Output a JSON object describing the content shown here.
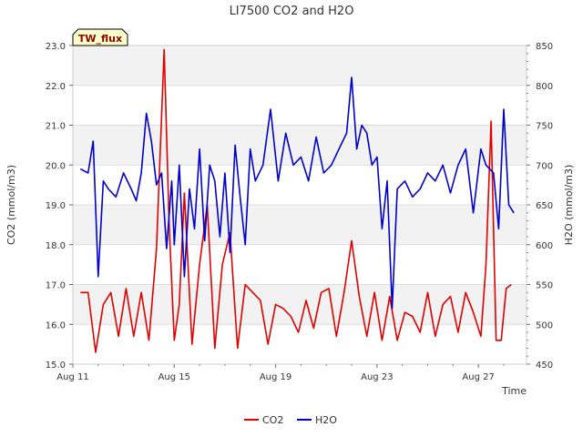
{
  "chart_data": {
    "type": "line",
    "title": "LI7500 CO2 and H2O",
    "site_badge": "TW_flux",
    "xlabel": "Time",
    "ylabel_left": "CO2 (mmol/m3)",
    "ylabel_right": "H2O (mmol/m3)",
    "x_range_days": [
      11,
      28.9
    ],
    "x_ticks": [
      {
        "day": 11,
        "label": "Aug 11"
      },
      {
        "day": 15,
        "label": "Aug 15"
      },
      {
        "day": 19,
        "label": "Aug 19"
      },
      {
        "day": 23,
        "label": "Aug 23"
      },
      {
        "day": 27,
        "label": "Aug 27"
      }
    ],
    "ylim_left": [
      15.0,
      23.0
    ],
    "yticks_left": [
      "15.0",
      "16.0",
      "17.0",
      "18.0",
      "19.0",
      "20.0",
      "21.0",
      "22.0",
      "23.0"
    ],
    "ylim_right": [
      450,
      850
    ],
    "yticks_right": [
      "450",
      "500",
      "550",
      "600",
      "650",
      "700",
      "750",
      "800",
      "850"
    ],
    "grid": true,
    "legend_position": "bottom-center",
    "series": [
      {
        "name": "CO2",
        "axis": "left",
        "color": "#e00000",
        "x": [
          11.3,
          11.6,
          11.9,
          12.2,
          12.5,
          12.8,
          13.1,
          13.4,
          13.7,
          14.0,
          14.3,
          14.6,
          14.8,
          15.0,
          15.2,
          15.4,
          15.7,
          16.0,
          16.3,
          16.6,
          16.9,
          17.2,
          17.5,
          17.8,
          18.1,
          18.4,
          18.7,
          19.0,
          19.3,
          19.6,
          19.9,
          20.2,
          20.5,
          20.8,
          21.1,
          21.4,
          21.7,
          22.0,
          22.3,
          22.6,
          22.9,
          23.2,
          23.5,
          23.8,
          24.1,
          24.4,
          24.7,
          25.0,
          25.3,
          25.6,
          25.9,
          26.2,
          26.5,
          26.8,
          27.1,
          27.3,
          27.5,
          27.7,
          27.9,
          28.1,
          28.3
        ],
        "y": [
          16.8,
          16.8,
          15.3,
          16.5,
          16.8,
          15.7,
          16.9,
          15.7,
          16.8,
          15.6,
          17.9,
          22.9,
          18.5,
          15.6,
          16.5,
          19.3,
          15.5,
          17.5,
          19.0,
          15.4,
          17.5,
          18.3,
          15.4,
          17.0,
          16.8,
          16.6,
          15.5,
          16.5,
          16.4,
          16.2,
          15.8,
          16.6,
          15.9,
          16.8,
          16.9,
          15.7,
          16.8,
          18.1,
          16.7,
          15.7,
          16.8,
          15.6,
          16.7,
          15.6,
          16.3,
          16.2,
          15.8,
          16.8,
          15.7,
          16.5,
          16.7,
          15.8,
          16.8,
          16.3,
          15.7,
          17.5,
          21.1,
          15.6,
          15.6,
          16.9,
          17.0
        ]
      },
      {
        "name": "H2O",
        "axis": "right",
        "color": "#0000cc",
        "x": [
          11.3,
          11.6,
          11.8,
          12.0,
          12.2,
          12.4,
          12.7,
          13.0,
          13.3,
          13.5,
          13.7,
          13.9,
          14.1,
          14.3,
          14.5,
          14.7,
          14.9,
          15.0,
          15.2,
          15.4,
          15.6,
          15.8,
          16.0,
          16.2,
          16.4,
          16.6,
          16.8,
          17.0,
          17.2,
          17.4,
          17.6,
          17.8,
          18.0,
          18.2,
          18.5,
          18.8,
          19.1,
          19.4,
          19.7,
          20.0,
          20.3,
          20.6,
          20.9,
          21.2,
          21.5,
          21.8,
          22.0,
          22.2,
          22.4,
          22.6,
          22.8,
          23.0,
          23.2,
          23.4,
          23.6,
          23.8,
          24.1,
          24.4,
          24.7,
          25.0,
          25.3,
          25.6,
          25.9,
          26.2,
          26.5,
          26.8,
          27.1,
          27.3,
          27.6,
          27.8,
          28.0,
          28.2,
          28.4
        ],
        "y": [
          695,
          690,
          730,
          560,
          680,
          670,
          660,
          690,
          670,
          655,
          690,
          765,
          730,
          675,
          690,
          595,
          680,
          600,
          700,
          560,
          670,
          620,
          720,
          605,
          700,
          680,
          610,
          690,
          590,
          725,
          660,
          600,
          720,
          680,
          700,
          770,
          680,
          740,
          700,
          710,
          680,
          735,
          690,
          700,
          720,
          740,
          810,
          720,
          750,
          740,
          700,
          710,
          620,
          680,
          520,
          670,
          680,
          660,
          670,
          690,
          680,
          700,
          665,
          700,
          720,
          640,
          720,
          700,
          690,
          620,
          770,
          650,
          640
        ]
      }
    ]
  }
}
